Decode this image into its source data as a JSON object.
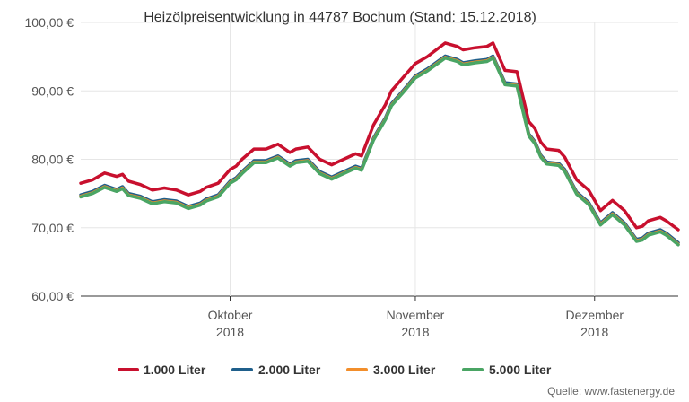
{
  "chart_data": {
    "type": "line",
    "title": "Heizölpreisentwicklung in 44787 Bochum (Stand: 15.12.2018)",
    "source": "Quelle: www.fastenergy.de",
    "y_tick_labels": [
      "60,00 €",
      "70,00 €",
      "80,00 €",
      "90,00 €",
      "100,00 €"
    ],
    "y_ticks": [
      60,
      70,
      80,
      90,
      100
    ],
    "ylim": [
      60,
      100
    ],
    "x_range": [
      "2018-09-06",
      "2018-12-15"
    ],
    "x_ticks": [
      {
        "date": "2018-10-01",
        "line1": "Oktober",
        "line2": "2018"
      },
      {
        "date": "2018-11-01",
        "line1": "November",
        "line2": "2018"
      },
      {
        "date": "2018-12-01",
        "line1": "Dezember",
        "line2": "2018"
      }
    ],
    "grid": "vertical",
    "legend_position": "bottom",
    "x": [
      "2018-09-06",
      "2018-09-08",
      "2018-09-10",
      "2018-09-12",
      "2018-09-13",
      "2018-09-14",
      "2018-09-16",
      "2018-09-18",
      "2018-09-20",
      "2018-09-22",
      "2018-09-24",
      "2018-09-26",
      "2018-09-27",
      "2018-09-29",
      "2018-10-01",
      "2018-10-02",
      "2018-10-03",
      "2018-10-05",
      "2018-10-07",
      "2018-10-09",
      "2018-10-11",
      "2018-10-12",
      "2018-10-14",
      "2018-10-16",
      "2018-10-18",
      "2018-10-20",
      "2018-10-22",
      "2018-10-23",
      "2018-10-25",
      "2018-10-26",
      "2018-10-27",
      "2018-10-28",
      "2018-10-30",
      "2018-11-01",
      "2018-11-03",
      "2018-11-06",
      "2018-11-08",
      "2018-11-09",
      "2018-11-11",
      "2018-11-13",
      "2018-11-14",
      "2018-11-16",
      "2018-11-18",
      "2018-11-20",
      "2018-11-21",
      "2018-11-22",
      "2018-11-23",
      "2018-11-25",
      "2018-11-26",
      "2018-11-28",
      "2018-11-30",
      "2018-12-02",
      "2018-12-04",
      "2018-12-06",
      "2018-12-08",
      "2018-12-09",
      "2018-12-10",
      "2018-12-12",
      "2018-12-13",
      "2018-12-15"
    ],
    "series": [
      {
        "name": "1.000 Liter",
        "color": "#c8102e",
        "values": [
          76.5,
          77.0,
          78.0,
          77.5,
          77.8,
          76.8,
          76.3,
          75.5,
          75.8,
          75.5,
          74.8,
          75.3,
          75.9,
          76.5,
          78.5,
          79.0,
          80.0,
          81.5,
          81.5,
          82.2,
          81.0,
          81.5,
          81.8,
          80.0,
          79.2,
          80.0,
          80.8,
          80.5,
          85.0,
          86.5,
          88.0,
          90.0,
          92.0,
          94.0,
          95.0,
          97.0,
          96.5,
          96.0,
          96.3,
          96.5,
          97.0,
          93.0,
          92.8,
          85.5,
          84.5,
          82.5,
          81.5,
          81.3,
          80.3,
          77.0,
          75.5,
          72.5,
          74.0,
          72.5,
          70.0,
          70.2,
          71.0,
          71.5,
          71.0,
          69.7
        ]
      },
      {
        "name": "2.000 Liter",
        "color": "#1f5f8b",
        "values": [
          74.8,
          75.3,
          76.2,
          75.6,
          76.0,
          75.0,
          74.6,
          73.8,
          74.1,
          73.9,
          73.1,
          73.6,
          74.2,
          74.8,
          76.8,
          77.3,
          78.2,
          79.8,
          79.8,
          80.5,
          79.3,
          79.8,
          80.0,
          78.2,
          77.4,
          78.2,
          79.0,
          78.7,
          83.1,
          84.6,
          86.1,
          88.1,
          90.1,
          92.2,
          93.2,
          95.1,
          94.6,
          94.1,
          94.4,
          94.6,
          95.1,
          91.2,
          91.0,
          83.7,
          82.6,
          80.6,
          79.6,
          79.4,
          78.5,
          75.2,
          73.7,
          70.7,
          72.2,
          70.7,
          68.3,
          68.5,
          69.2,
          69.7,
          69.2,
          67.8
        ]
      },
      {
        "name": "3.000 Liter",
        "color": "#f28e2b",
        "values": [
          74.6,
          75.1,
          76.0,
          75.4,
          75.8,
          74.8,
          74.4,
          73.6,
          73.9,
          73.7,
          72.9,
          73.4,
          74.0,
          74.6,
          76.6,
          77.1,
          78.0,
          79.6,
          79.6,
          80.3,
          79.1,
          79.6,
          79.8,
          78.0,
          77.2,
          78.0,
          78.8,
          78.5,
          82.9,
          84.4,
          85.9,
          87.9,
          89.9,
          92.0,
          93.0,
          94.9,
          94.4,
          93.9,
          94.2,
          94.4,
          94.9,
          91.0,
          90.8,
          83.5,
          82.4,
          80.4,
          79.4,
          79.2,
          78.3,
          75.0,
          73.5,
          70.5,
          72.0,
          70.5,
          68.1,
          68.3,
          69.0,
          69.5,
          69.0,
          67.6
        ]
      },
      {
        "name": "5.000 Liter",
        "color": "#4aa564",
        "values": [
          74.5,
          75.0,
          75.9,
          75.3,
          75.7,
          74.7,
          74.3,
          73.5,
          73.8,
          73.6,
          72.8,
          73.3,
          73.9,
          74.5,
          76.5,
          77.0,
          77.9,
          79.5,
          79.5,
          80.2,
          79.0,
          79.5,
          79.7,
          77.9,
          77.1,
          77.9,
          78.7,
          78.4,
          82.8,
          84.3,
          85.8,
          87.8,
          89.8,
          91.9,
          92.9,
          94.8,
          94.3,
          93.8,
          94.1,
          94.3,
          94.8,
          90.9,
          90.7,
          83.4,
          82.3,
          80.3,
          79.3,
          79.1,
          78.2,
          74.9,
          73.4,
          70.4,
          71.9,
          70.4,
          68.0,
          68.2,
          68.9,
          69.4,
          68.9,
          67.5
        ]
      }
    ]
  }
}
